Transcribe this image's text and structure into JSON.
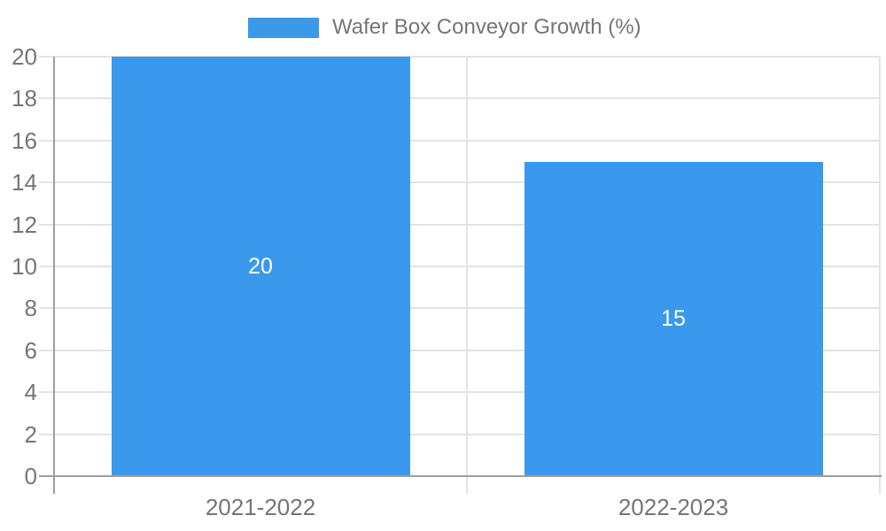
{
  "legend": {
    "label": "Wafer Box Conveyor Growth (%)"
  },
  "chart_data": {
    "type": "bar",
    "title": "Wafer Box Conveyor Growth (%)",
    "categories": [
      "2021-2022",
      "2022-2023"
    ],
    "values": [
      20,
      15
    ],
    "value_labels": [
      "20",
      "15"
    ],
    "series_name": "Wafer Box Conveyor Growth (%)",
    "xlabel": "",
    "ylabel": "",
    "ylim": [
      0,
      20
    ],
    "yticks": [
      0,
      2,
      4,
      6,
      8,
      10,
      12,
      14,
      16,
      18,
      20
    ],
    "grid": true,
    "legend_position": "top",
    "bar_width_fraction": 0.723
  },
  "colors": {
    "background": "#FFFFFF",
    "bar": "#3A99EC",
    "axis": "#9E9E9E",
    "gridline": "#E3E3E3",
    "tick_text": "#757575",
    "legend_text": "#757575",
    "bar_value_text": "#FFFFFF"
  }
}
